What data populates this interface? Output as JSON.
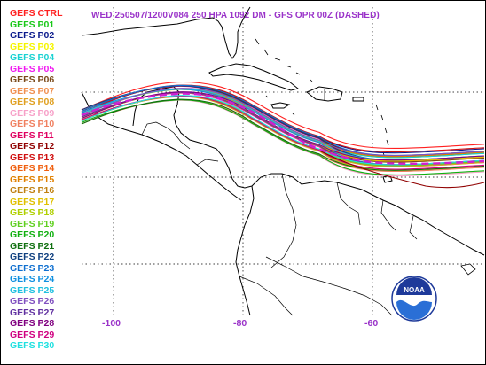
{
  "map": {
    "title": "WED 250507/1200V084  250 HPA 1092 DM - GFS OPR 00Z (DASHED)",
    "longitude_ticks": [
      "-100",
      "-80",
      "-60"
    ],
    "logo_text": "NOAA",
    "tick_color": "#9a33c9"
  },
  "legend": [
    {
      "label": "GEFS CTRL",
      "color": "#ff2020"
    },
    {
      "label": "GEFS P01",
      "color": "#19c819"
    },
    {
      "label": "GEFS P02",
      "color": "#0a1a8c"
    },
    {
      "label": "GEFS P03",
      "color": "#f5f500"
    },
    {
      "label": "GEFS P04",
      "color": "#19d2d2"
    },
    {
      "label": "GEFS P05",
      "color": "#f019f0"
    },
    {
      "label": "GEFS P06",
      "color": "#7a4a1a"
    },
    {
      "label": "GEFS P07",
      "color": "#f09050"
    },
    {
      "label": "GEFS P08",
      "color": "#e0a020"
    },
    {
      "label": "GEFS P09",
      "color": "#f7a0c8"
    },
    {
      "label": "GEFS P10",
      "color": "#f08060"
    },
    {
      "label": "GEFS P11",
      "color": "#e00060"
    },
    {
      "label": "GEFS P12",
      "color": "#900000"
    },
    {
      "label": "GEFS P13",
      "color": "#d01010"
    },
    {
      "label": "GEFS P14",
      "color": "#f06010"
    },
    {
      "label": "GEFS P15",
      "color": "#e08000"
    },
    {
      "label": "GEFS P16",
      "color": "#c08010"
    },
    {
      "label": "GEFS P17",
      "color": "#e0c000"
    },
    {
      "label": "GEFS P18",
      "color": "#b0d000"
    },
    {
      "label": "GEFS P19",
      "color": "#60d020"
    },
    {
      "label": "GEFS P20",
      "color": "#10b010"
    },
    {
      "label": "GEFS P21",
      "color": "#107010"
    },
    {
      "label": "GEFS P22",
      "color": "#104080"
    },
    {
      "label": "GEFS P23",
      "color": "#1070d0"
    },
    {
      "label": "GEFS P24",
      "color": "#1090e0"
    },
    {
      "label": "GEFS P25",
      "color": "#20c0e0"
    },
    {
      "label": "GEFS P26",
      "color": "#8050c0"
    },
    {
      "label": "GEFS P27",
      "color": "#6030a0"
    },
    {
      "label": "GEFS P28",
      "color": "#800080"
    },
    {
      "label": "GEFS P29",
      "color": "#d00080"
    },
    {
      "label": "GEFS P30",
      "color": "#20e0e0"
    }
  ]
}
